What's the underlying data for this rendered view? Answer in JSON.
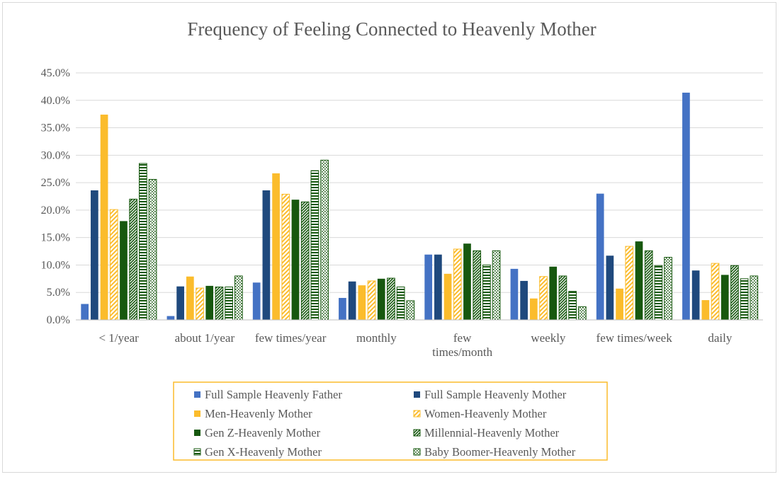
{
  "chart_data": {
    "type": "bar",
    "title": "Frequency of Feeling Connected to Heavenly Mother",
    "xlabel": "",
    "ylabel": "",
    "ylim": [
      0,
      45
    ],
    "y_ticks": [
      "0.0%",
      "5.0%",
      "10.0%",
      "15.0%",
      "20.0%",
      "25.0%",
      "30.0%",
      "35.0%",
      "40.0%",
      "45.0%"
    ],
    "grid": true,
    "legend_position": "bottom",
    "categories": [
      "< 1/year",
      "about 1/year",
      "few times/year",
      "monthly",
      "few times/month",
      "weekly",
      "few times/week",
      "daily"
    ],
    "category_lines": [
      [
        "< 1/year"
      ],
      [
        "about 1/year"
      ],
      [
        "few times/year"
      ],
      [
        "monthly"
      ],
      [
        "few",
        "times/month"
      ],
      [
        "weekly"
      ],
      [
        "few times/week"
      ],
      [
        "daily"
      ]
    ],
    "series": [
      {
        "name": "Full Sample Heavenly Father",
        "color": "#4472c4",
        "pattern": "solid",
        "values": [
          2.9,
          0.7,
          6.8,
          4.0,
          11.9,
          9.3,
          23.0,
          41.4
        ]
      },
      {
        "name": "Full Sample Heavenly Mother",
        "color": "#1f497d",
        "pattern": "solid",
        "values": [
          23.6,
          6.1,
          23.6,
          7.0,
          11.9,
          7.1,
          11.7,
          9.0
        ]
      },
      {
        "name": "Men-Heavenly Mother",
        "color": "#fbbc2c",
        "pattern": "solid",
        "values": [
          37.4,
          7.9,
          26.7,
          6.3,
          8.4,
          3.9,
          5.7,
          3.6
        ]
      },
      {
        "name": "Women-Heavenly Mother",
        "color": "#fbbc2c",
        "pattern": "diagonal",
        "values": [
          20.1,
          5.8,
          22.9,
          7.1,
          12.9,
          7.9,
          13.4,
          10.3
        ]
      },
      {
        "name": "Gen Z-Heavenly Mother",
        "color": "#17580f",
        "pattern": "solid",
        "values": [
          18.0,
          6.2,
          21.9,
          7.5,
          13.9,
          9.7,
          14.3,
          8.2
        ]
      },
      {
        "name": "Millennial-Heavenly Mother",
        "color": "#17580f",
        "pattern": "diagonal-dense",
        "values": [
          22.0,
          6.0,
          21.5,
          7.6,
          12.6,
          8.0,
          12.6,
          9.9
        ]
      },
      {
        "name": "Gen X-Heavenly Mother",
        "color": "#17580f",
        "pattern": "horizontal",
        "values": [
          28.5,
          6.0,
          27.2,
          6.0,
          10.0,
          5.2,
          9.9,
          7.5
        ]
      },
      {
        "name": "Baby Boomer-Heavenly Mother",
        "color": "#17580f",
        "pattern": "dotted",
        "values": [
          25.6,
          8.0,
          29.1,
          3.5,
          12.6,
          2.4,
          11.4,
          8.0
        ]
      }
    ]
  },
  "legend_border_color": "#fbbc2c",
  "gridline_color": "#d9d9d9"
}
